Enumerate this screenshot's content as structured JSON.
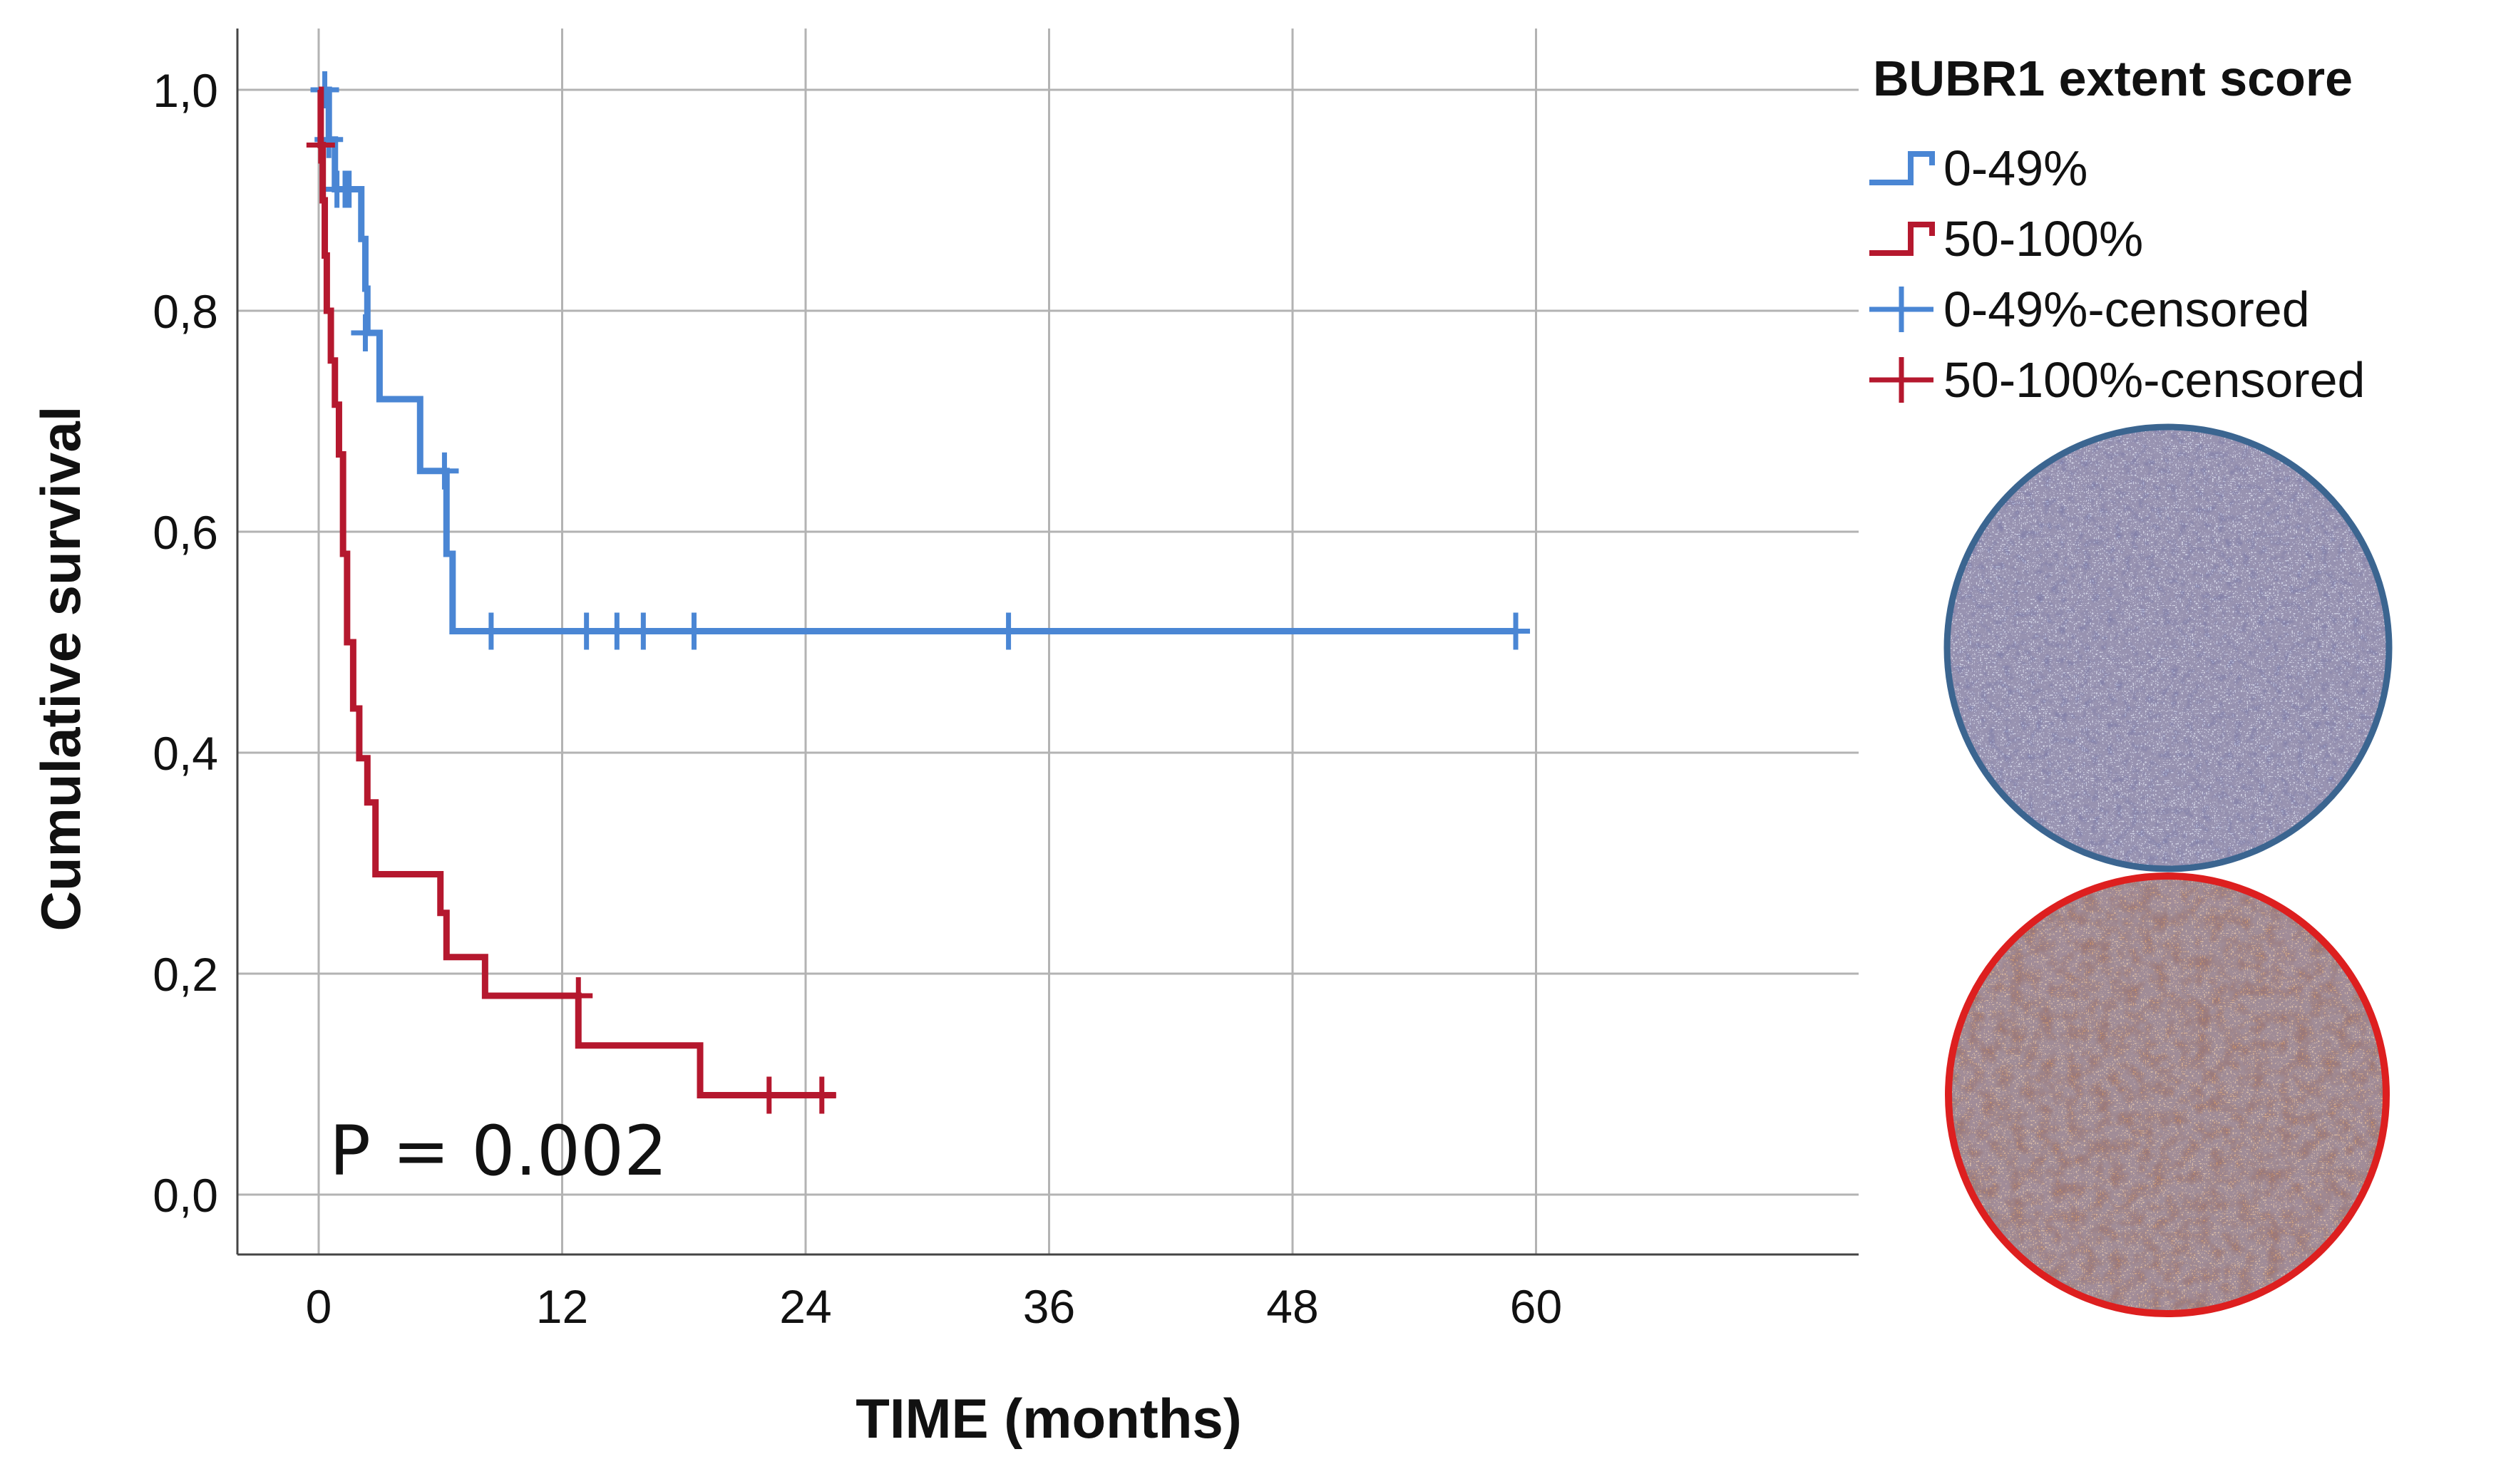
{
  "chart_data": {
    "type": "line",
    "subtype": "kaplan-meier",
    "title": "",
    "xlabel": "TIME (months)",
    "ylabel": "Cumulative survival",
    "xlim": [
      -2,
      63
    ],
    "ylim": [
      -0.05,
      1.05
    ],
    "xticks": [
      0,
      12,
      24,
      36,
      48,
      60
    ],
    "xtick_labels": [
      "0",
      "12",
      "24",
      "36",
      "48",
      "60"
    ],
    "yticks": [
      0.0,
      0.2,
      0.4,
      0.6,
      0.8,
      1.0
    ],
    "ytick_labels": [
      "0,0",
      "0,2",
      "0,4",
      "0,6",
      "0,8",
      "1,0"
    ],
    "grid": true,
    "legend": {
      "title": "BUBR1 extent score",
      "placement": "top-right, outside plot",
      "entries": [
        "0-49%",
        "50-100%",
        "0-49%-censored",
        "50-100%-censored"
      ]
    },
    "annotations": [
      {
        "text": "P = 0.002",
        "placement": "bottom-left inside plot"
      }
    ],
    "series": [
      {
        "name": "0-49%",
        "color": "#4a86d4",
        "steps": [
          [
            0,
            1.0
          ],
          [
            0.5,
            0.955
          ],
          [
            0.8,
            0.91
          ],
          [
            2.1,
            0.865
          ],
          [
            2.3,
            0.82
          ],
          [
            2.4,
            0.78
          ],
          [
            3.0,
            0.72
          ],
          [
            5.0,
            0.655
          ],
          [
            6.3,
            0.58
          ],
          [
            6.6,
            0.51
          ],
          [
            59,
            0.51
          ]
        ],
        "censored": [
          [
            0.3,
            1.0
          ],
          [
            0.5,
            0.955
          ],
          [
            0.9,
            0.91
          ],
          [
            1.3,
            0.91
          ],
          [
            1.5,
            0.91
          ],
          [
            2.3,
            0.78
          ],
          [
            6.2,
            0.655
          ],
          [
            8.5,
            0.51
          ],
          [
            13.2,
            0.51
          ],
          [
            14.7,
            0.51
          ],
          [
            16.0,
            0.51
          ],
          [
            18.5,
            0.51
          ],
          [
            34.0,
            0.51
          ],
          [
            59.0,
            0.51
          ]
        ]
      },
      {
        "name": "50-100%",
        "color": "#b5182e",
        "steps": [
          [
            0,
            1.0
          ],
          [
            0.1,
            0.95
          ],
          [
            0.2,
            0.9
          ],
          [
            0.3,
            0.85
          ],
          [
            0.4,
            0.8
          ],
          [
            0.6,
            0.755
          ],
          [
            0.8,
            0.715
          ],
          [
            1.0,
            0.67
          ],
          [
            1.2,
            0.58
          ],
          [
            1.4,
            0.5
          ],
          [
            1.7,
            0.44
          ],
          [
            2.0,
            0.395
          ],
          [
            2.4,
            0.355
          ],
          [
            2.8,
            0.29
          ],
          [
            6.0,
            0.255
          ],
          [
            6.3,
            0.215
          ],
          [
            8.2,
            0.18
          ],
          [
            12.8,
            0.135
          ],
          [
            18.8,
            0.09
          ],
          [
            25.5,
            0.09
          ]
        ],
        "censored": [
          [
            0.1,
            0.95
          ],
          [
            12.8,
            0.18
          ],
          [
            22.2,
            0.09
          ],
          [
            24.8,
            0.09
          ]
        ]
      }
    ]
  },
  "images": [
    {
      "name": "tissue-core-low-staining",
      "border_color": "#3b6590",
      "tone": "blue-grey"
    },
    {
      "name": "tissue-core-high-staining",
      "border_color": "#dd1f1f",
      "tone": "brown"
    }
  ]
}
